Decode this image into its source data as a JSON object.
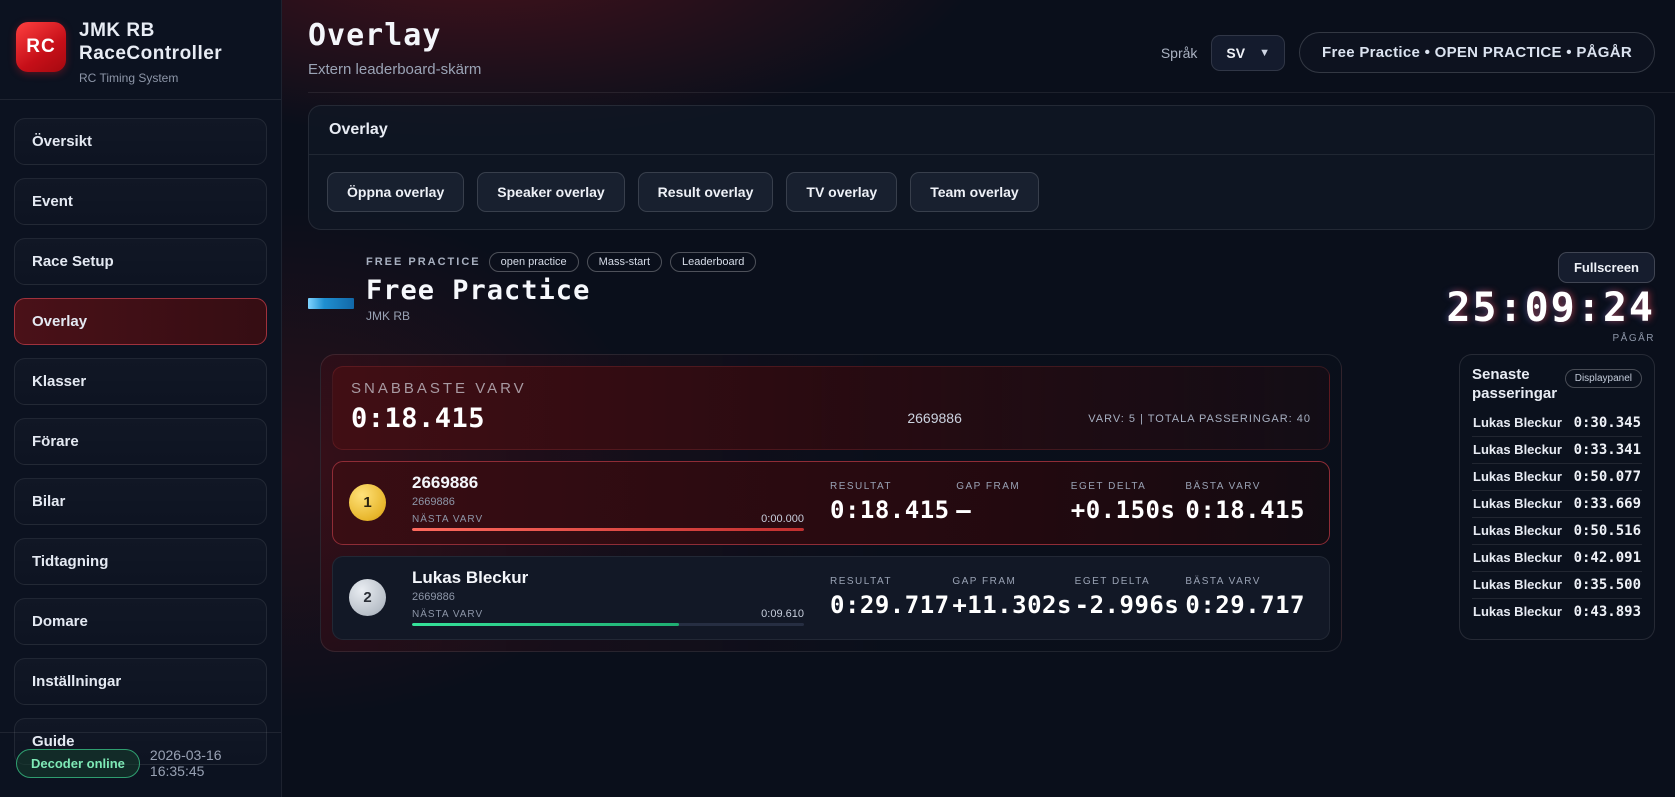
{
  "app": {
    "logo_text": "RC",
    "title": "JMK RB RaceController",
    "subtitle": "RC Timing System"
  },
  "sidebar": {
    "items": [
      {
        "label": "Översikt",
        "active": false
      },
      {
        "label": "Event",
        "active": false
      },
      {
        "label": "Race Setup",
        "active": false
      },
      {
        "label": "Overlay",
        "active": true
      },
      {
        "label": "Klasser",
        "active": false
      },
      {
        "label": "Förare",
        "active": false
      },
      {
        "label": "Bilar",
        "active": false
      },
      {
        "label": "Tidtagning",
        "active": false
      },
      {
        "label": "Domare",
        "active": false
      },
      {
        "label": "Inställningar",
        "active": false
      },
      {
        "label": "Guide",
        "active": false
      }
    ],
    "decoder_status": "Decoder online",
    "timestamp": "2026-03-16 16:35:45"
  },
  "header": {
    "title": "Overlay",
    "subtitle": "Extern leaderboard-skärm",
    "language_label": "Språk",
    "language_value": "SV",
    "session_badge": "Free Practice • OPEN PRACTICE • PÅGÅR"
  },
  "overlay_card": {
    "title": "Overlay",
    "buttons": [
      "Öppna overlay",
      "Speaker overlay",
      "Result overlay",
      "TV overlay",
      "Team overlay"
    ]
  },
  "session": {
    "eyebrow": "FREE PRACTICE",
    "badges": [
      "open practice",
      "Mass-start",
      "Leaderboard"
    ],
    "title": "Free Practice",
    "club": "JMK RB",
    "fullscreen_label": "Fullscreen",
    "timer": "25:09:24",
    "timer_status": "PÅGÅR"
  },
  "fastest_lap": {
    "label": "SNABBASTE VARV",
    "time": "0:18.415",
    "holder": "2669886",
    "stats": "VARV: 5 | TOTALA PASSERINGAR: 40"
  },
  "leaderboard": {
    "next_lap_label": "NÄSTA VARV",
    "columns": {
      "result": "RESULTAT",
      "gap": "GAP FRAM",
      "delta": "EGET DELTA",
      "best": "BÄSTA VARV"
    },
    "rows": [
      {
        "pos": "1",
        "name": "2669886",
        "transponder": "2669886",
        "next_lap_time": "0:00.000",
        "progress_pct": 100,
        "progress_color": "red",
        "result": "0:18.415",
        "gap": "–",
        "delta": "+0.150s",
        "best": "0:18.415",
        "highlight": true
      },
      {
        "pos": "2",
        "name": "Lukas Bleckur",
        "transponder": "2669886",
        "next_lap_time": "0:09.610",
        "progress_pct": 68,
        "progress_color": "green",
        "result": "0:29.717",
        "gap": "+11.302s",
        "delta": "-2.996s",
        "best": "0:29.717",
        "highlight": false
      }
    ]
  },
  "passings": {
    "title": "Senaste passeringar",
    "badge": "Displaypanel",
    "rows": [
      {
        "name": "Lukas Bleckur",
        "time": "0:30.345"
      },
      {
        "name": "Lukas Bleckur",
        "time": "0:33.341"
      },
      {
        "name": "Lukas Bleckur",
        "time": "0:50.077"
      },
      {
        "name": "Lukas Bleckur",
        "time": "0:33.669"
      },
      {
        "name": "Lukas Bleckur",
        "time": "0:50.516"
      },
      {
        "name": "Lukas Bleckur",
        "time": "0:42.091"
      },
      {
        "name": "Lukas Bleckur",
        "time": "0:35.500"
      },
      {
        "name": "Lukas Bleckur",
        "time": "0:43.893"
      }
    ]
  },
  "colors": {
    "accent_red": "#c22f36",
    "gold": "#e8b62c",
    "silver": "#b9c0c9",
    "green": "#2ecc8f",
    "logo_blue": "#1f8fd0"
  }
}
